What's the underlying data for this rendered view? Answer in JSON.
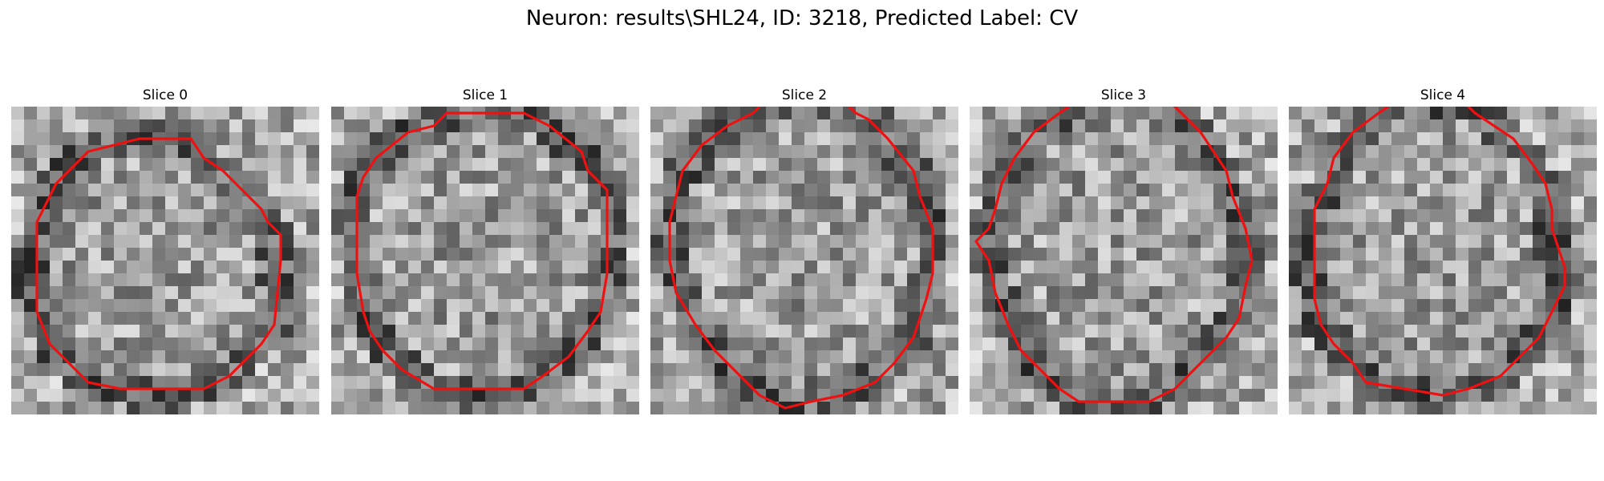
{
  "figure": {
    "title": "Neuron: results\\SHL24, ID: 3218, Predicted Label: CV",
    "contour_color": "#ee1111"
  },
  "slices": [
    {
      "label": "Slice 0",
      "contour": [
        [
          10,
          2.5
        ],
        [
          6,
          3.5
        ],
        [
          3.5,
          6
        ],
        [
          2,
          9
        ],
        [
          2,
          16
        ],
        [
          3,
          18.5
        ],
        [
          4.5,
          20
        ],
        [
          6,
          21.5
        ],
        [
          8.5,
          22
        ],
        [
          15,
          22
        ],
        [
          17,
          21
        ],
        [
          19.5,
          18.5
        ],
        [
          20.5,
          17
        ],
        [
          21,
          12
        ],
        [
          21,
          10
        ],
        [
          20,
          9
        ],
        [
          19.5,
          8
        ],
        [
          16.5,
          5
        ],
        [
          15,
          4
        ],
        [
          14,
          2.5
        ]
      ]
    },
    {
      "label": "Slice 1",
      "contour": [
        [
          8,
          1.5
        ],
        [
          6,
          2
        ],
        [
          3.5,
          4
        ],
        [
          2.5,
          5.5
        ],
        [
          2,
          7
        ],
        [
          2,
          13
        ],
        [
          2.5,
          16
        ],
        [
          3,
          17.5
        ],
        [
          4,
          19
        ],
        [
          5.5,
          20.5
        ],
        [
          8,
          22
        ],
        [
          15,
          22
        ],
        [
          16.5,
          21
        ],
        [
          18.5,
          19.5
        ],
        [
          20,
          17.5
        ],
        [
          21,
          16
        ],
        [
          21.5,
          13
        ],
        [
          21.5,
          6.5
        ],
        [
          20,
          5
        ],
        [
          19.5,
          3.5
        ],
        [
          17,
          1.5
        ],
        [
          15,
          0.5
        ],
        [
          9,
          0.5
        ]
      ]
    },
    {
      "label": "Slice 2",
      "contour": [
        [
          9,
          -0.5
        ],
        [
          8,
          0.5
        ],
        [
          6,
          1.5
        ],
        [
          4,
          3
        ],
        [
          2.5,
          5
        ],
        [
          2,
          7
        ],
        [
          1.5,
          9
        ],
        [
          1.5,
          12
        ],
        [
          2,
          14.5
        ],
        [
          3.5,
          17
        ],
        [
          5,
          19
        ],
        [
          7,
          21
        ],
        [
          8.5,
          22.5
        ],
        [
          10.5,
          23.5
        ],
        [
          12.5,
          23
        ],
        [
          15,
          22.5
        ],
        [
          17.5,
          21.5
        ],
        [
          19,
          20
        ],
        [
          20.5,
          18
        ],
        [
          21.5,
          15
        ],
        [
          22,
          13
        ],
        [
          22,
          9.5
        ],
        [
          21,
          7
        ],
        [
          20.5,
          5
        ],
        [
          18.5,
          2.5
        ],
        [
          17,
          1
        ],
        [
          16,
          0.5
        ],
        [
          15,
          -0.5
        ]
      ]
    },
    {
      "label": "Slice 3",
      "contour": [
        [
          8.5,
          -0.5
        ],
        [
          7,
          0.5
        ],
        [
          5,
          2
        ],
        [
          3.5,
          4
        ],
        [
          2.5,
          6
        ],
        [
          2,
          8
        ],
        [
          1.5,
          9.5
        ],
        [
          0.5,
          10.5
        ],
        [
          1.5,
          12
        ],
        [
          2,
          14.5
        ],
        [
          3,
          17
        ],
        [
          4,
          19
        ],
        [
          5.5,
          20.5
        ],
        [
          7,
          22
        ],
        [
          8.5,
          23
        ],
        [
          14,
          23
        ],
        [
          16,
          22
        ],
        [
          18.5,
          19.5
        ],
        [
          20,
          18
        ],
        [
          21,
          16.5
        ],
        [
          21.5,
          14
        ],
        [
          22,
          12
        ],
        [
          21.5,
          9.5
        ],
        [
          20.5,
          7
        ],
        [
          20,
          5
        ],
        [
          19,
          3.5
        ],
        [
          18,
          2
        ],
        [
          16.5,
          0.5
        ],
        [
          15.5,
          -0.5
        ]
      ]
    },
    {
      "label": "Slice 4",
      "contour": [
        [
          8.5,
          -0.5
        ],
        [
          7,
          0.5
        ],
        [
          5,
          2
        ],
        [
          3.5,
          4
        ],
        [
          3,
          6
        ],
        [
          2,
          8
        ],
        [
          2,
          15
        ],
        [
          2.5,
          17
        ],
        [
          3.5,
          18.5
        ],
        [
          5,
          20
        ],
        [
          6,
          21.5
        ],
        [
          9,
          22
        ],
        [
          12,
          22.5
        ],
        [
          14,
          22
        ],
        [
          16.5,
          21
        ],
        [
          18,
          19.5
        ],
        [
          19.5,
          18
        ],
        [
          20.5,
          16
        ],
        [
          21.5,
          14
        ],
        [
          21.5,
          12.5
        ],
        [
          21,
          11
        ],
        [
          20.5,
          9.5
        ],
        [
          20.5,
          8
        ],
        [
          20,
          6
        ],
        [
          19,
          4.5
        ],
        [
          17.5,
          2.5
        ],
        [
          16,
          1.5
        ],
        [
          14.5,
          0.5
        ],
        [
          13.5,
          -0.5
        ]
      ]
    }
  ]
}
